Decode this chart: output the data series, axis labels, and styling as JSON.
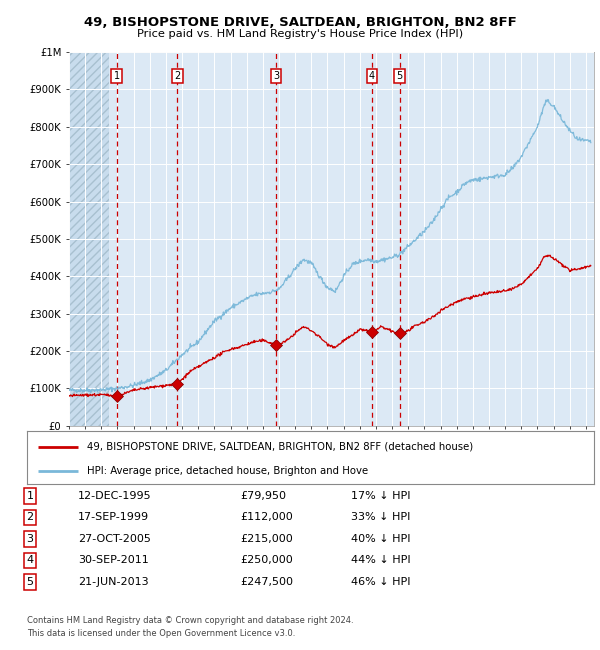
{
  "title": "49, BISHOPSTONE DRIVE, SALTDEAN, BRIGHTON, BN2 8FF",
  "subtitle": "Price paid vs. HM Land Registry's House Price Index (HPI)",
  "legend_property": "49, BISHOPSTONE DRIVE, SALTDEAN, BRIGHTON, BN2 8FF (detached house)",
  "legend_hpi": "HPI: Average price, detached house, Brighton and Hove",
  "footnote1": "Contains HM Land Registry data © Crown copyright and database right 2024.",
  "footnote2": "This data is licensed under the Open Government Licence v3.0.",
  "hpi_color": "#7ab8d9",
  "property_color": "#cc0000",
  "dashed_line_color": "#cc0000",
  "background_color": "#dce9f5",
  "ylim": [
    0,
    1000000
  ],
  "yticks": [
    0,
    100000,
    200000,
    300000,
    400000,
    500000,
    600000,
    700000,
    800000,
    900000,
    1000000
  ],
  "ytick_labels": [
    "£0",
    "£100K",
    "£200K",
    "£300K",
    "£400K",
    "£500K",
    "£600K",
    "£700K",
    "£800K",
    "£900K",
    "£1M"
  ],
  "transactions": [
    {
      "num": 1,
      "date": "12-DEC-1995",
      "date_val": 1995.95,
      "price": 79950,
      "price_str": "£79,950",
      "pct": "17% ↓ HPI"
    },
    {
      "num": 2,
      "date": "17-SEP-1999",
      "date_val": 1999.71,
      "price": 112000,
      "price_str": "£112,000",
      "pct": "33% ↓ HPI"
    },
    {
      "num": 3,
      "date": "27-OCT-2005",
      "date_val": 2005.82,
      "price": 215000,
      "price_str": "£215,000",
      "pct": "40% ↓ HPI"
    },
    {
      "num": 4,
      "date": "30-SEP-2011",
      "date_val": 2011.75,
      "price": 250000,
      "price_str": "£250,000",
      "pct": "44% ↓ HPI"
    },
    {
      "num": 5,
      "date": "21-JUN-2013",
      "date_val": 2013.47,
      "price": 247500,
      "price_str": "£247,500",
      "pct": "46% ↓ HPI"
    }
  ],
  "xmin": 1993.0,
  "xmax": 2025.5,
  "hpi_keypoints": [
    [
      1993.0,
      95000
    ],
    [
      1994.0,
      95000
    ],
    [
      1995.0,
      96000
    ],
    [
      1996.0,
      100000
    ],
    [
      1997.0,
      108000
    ],
    [
      1998.0,
      122000
    ],
    [
      1999.0,
      148000
    ],
    [
      2000.0,
      190000
    ],
    [
      2001.0,
      225000
    ],
    [
      2002.0,
      280000
    ],
    [
      2003.0,
      315000
    ],
    [
      2004.0,
      340000
    ],
    [
      2004.5,
      350000
    ],
    [
      2005.5,
      358000
    ],
    [
      2006.0,
      365000
    ],
    [
      2007.0,
      420000
    ],
    [
      2007.5,
      445000
    ],
    [
      2008.0,
      435000
    ],
    [
      2008.5,
      400000
    ],
    [
      2009.0,
      370000
    ],
    [
      2009.5,
      360000
    ],
    [
      2010.0,
      400000
    ],
    [
      2010.5,
      430000
    ],
    [
      2011.0,
      440000
    ],
    [
      2011.5,
      445000
    ],
    [
      2012.0,
      440000
    ],
    [
      2012.5,
      445000
    ],
    [
      2013.0,
      450000
    ],
    [
      2013.5,
      460000
    ],
    [
      2014.0,
      480000
    ],
    [
      2014.5,
      500000
    ],
    [
      2015.0,
      520000
    ],
    [
      2015.5,
      545000
    ],
    [
      2016.0,
      580000
    ],
    [
      2016.5,
      610000
    ],
    [
      2017.0,
      625000
    ],
    [
      2017.5,
      648000
    ],
    [
      2018.0,
      658000
    ],
    [
      2018.5,
      660000
    ],
    [
      2019.0,
      665000
    ],
    [
      2019.5,
      668000
    ],
    [
      2020.0,
      672000
    ],
    [
      2020.5,
      690000
    ],
    [
      2021.0,
      720000
    ],
    [
      2021.5,
      760000
    ],
    [
      2022.0,
      800000
    ],
    [
      2022.4,
      855000
    ],
    [
      2022.6,
      870000
    ],
    [
      2023.0,
      855000
    ],
    [
      2023.5,
      820000
    ],
    [
      2024.0,
      790000
    ],
    [
      2024.5,
      765000
    ],
    [
      2025.3,
      760000
    ]
  ],
  "prop_keypoints": [
    [
      1993.0,
      80000
    ],
    [
      1994.0,
      82000
    ],
    [
      1995.0,
      83000
    ],
    [
      1995.95,
      79950
    ],
    [
      1996.5,
      87000
    ],
    [
      1997.0,
      95000
    ],
    [
      1998.0,
      102000
    ],
    [
      1999.0,
      108000
    ],
    [
      1999.71,
      112000
    ],
    [
      2000.5,
      145000
    ],
    [
      2001.5,
      170000
    ],
    [
      2002.5,
      195000
    ],
    [
      2003.0,
      205000
    ],
    [
      2003.5,
      210000
    ],
    [
      2004.0,
      218000
    ],
    [
      2004.5,
      225000
    ],
    [
      2005.0,
      228000
    ],
    [
      2005.5,
      222000
    ],
    [
      2005.82,
      215000
    ],
    [
      2006.0,
      218000
    ],
    [
      2006.5,
      228000
    ],
    [
      2007.0,
      248000
    ],
    [
      2007.5,
      265000
    ],
    [
      2008.0,
      255000
    ],
    [
      2008.5,
      238000
    ],
    [
      2009.0,
      218000
    ],
    [
      2009.5,
      210000
    ],
    [
      2010.0,
      228000
    ],
    [
      2010.5,
      240000
    ],
    [
      2011.0,
      258000
    ],
    [
      2011.75,
      250000
    ],
    [
      2012.0,
      255000
    ],
    [
      2012.3,
      265000
    ],
    [
      2012.7,
      258000
    ],
    [
      2013.0,
      252000
    ],
    [
      2013.47,
      247500
    ],
    [
      2013.8,
      250000
    ],
    [
      2014.0,
      255000
    ],
    [
      2014.5,
      268000
    ],
    [
      2015.0,
      278000
    ],
    [
      2015.5,
      290000
    ],
    [
      2016.0,
      308000
    ],
    [
      2016.5,
      320000
    ],
    [
      2017.0,
      332000
    ],
    [
      2017.5,
      340000
    ],
    [
      2018.0,
      345000
    ],
    [
      2018.5,
      350000
    ],
    [
      2019.0,
      355000
    ],
    [
      2019.5,
      358000
    ],
    [
      2020.0,
      360000
    ],
    [
      2020.5,
      368000
    ],
    [
      2021.0,
      378000
    ],
    [
      2021.5,
      400000
    ],
    [
      2022.0,
      420000
    ],
    [
      2022.4,
      452000
    ],
    [
      2022.7,
      455000
    ],
    [
      2023.0,
      448000
    ],
    [
      2023.5,
      432000
    ],
    [
      2024.0,
      415000
    ],
    [
      2024.5,
      420000
    ],
    [
      2025.3,
      428000
    ]
  ]
}
